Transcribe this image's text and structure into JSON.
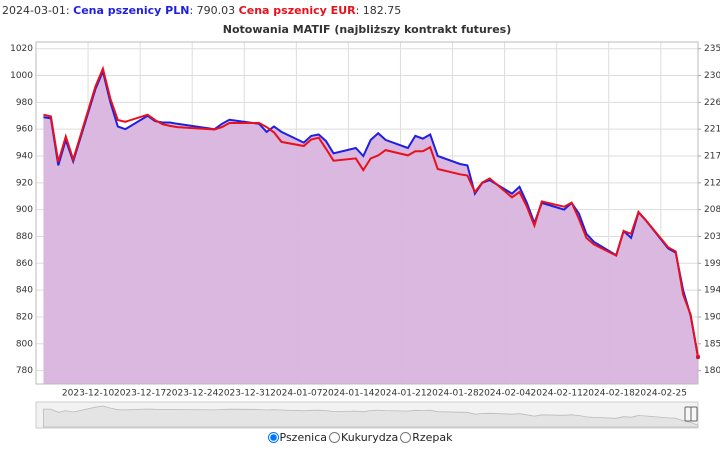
{
  "header": {
    "date": "2024-03-01:",
    "values": [
      ": 790.03",
      ": 182.75"
    ]
  },
  "controls": {
    "options": [
      "Pszenica",
      "Kukurydza",
      "Rzepak"
    ],
    "selected": 0
  },
  "chart_data": {
    "type": "line",
    "title": "Notowania MATIF (najbliższy kontrakt futures)",
    "x": [
      "2023-12-04",
      "2023-12-05",
      "2023-12-06",
      "2023-12-07",
      "2023-12-08",
      "2023-12-11",
      "2023-12-12",
      "2023-12-13",
      "2023-12-14",
      "2023-12-15",
      "2023-12-18",
      "2023-12-19",
      "2023-12-20",
      "2023-12-21",
      "2023-12-22",
      "2023-12-27",
      "2023-12-28",
      "2023-12-29",
      "2024-01-02",
      "2024-01-03",
      "2024-01-04",
      "2024-01-05",
      "2024-01-08",
      "2024-01-09",
      "2024-01-10",
      "2024-01-11",
      "2024-01-12",
      "2024-01-15",
      "2024-01-16",
      "2024-01-17",
      "2024-01-18",
      "2024-01-19",
      "2024-01-22",
      "2024-01-23",
      "2024-01-24",
      "2024-01-25",
      "2024-01-26",
      "2024-01-29",
      "2024-01-30",
      "2024-01-31",
      "2024-02-01",
      "2024-02-02",
      "2024-02-05",
      "2024-02-06",
      "2024-02-07",
      "2024-02-08",
      "2024-02-09",
      "2024-02-12",
      "2024-02-13",
      "2024-02-14",
      "2024-02-15",
      "2024-02-16",
      "2024-02-19",
      "2024-02-20",
      "2024-02-21",
      "2024-02-22",
      "2024-02-23",
      "2024-02-26",
      "2024-02-27",
      "2024-02-28",
      "2024-02-29",
      "2024-03-01"
    ],
    "series": [
      {
        "name": "Cena pszenicy PLN",
        "color": "#1f1fe0",
        "fill": "#d8b4de",
        "axis": "y",
        "values": [
          969,
          968,
          933,
          952,
          936,
          990,
          1003,
          980,
          962,
          960,
          970,
          966,
          965,
          965,
          964,
          960,
          964,
          967,
          964,
          958,
          962,
          958,
          950,
          955,
          956,
          951,
          942,
          946,
          940,
          952,
          957,
          952,
          946,
          955,
          953,
          956,
          940,
          934,
          933,
          912,
          920,
          922,
          912,
          917,
          905,
          890,
          905,
          900,
          905,
          897,
          882,
          876,
          866,
          884,
          879,
          898,
          892,
          871,
          868,
          840,
          821,
          790.03
        ]
      },
      {
        "name": "Cena pszenicy EUR",
        "color": "#e8101c",
        "axis": "y2",
        "values": [
          223.8,
          223.5,
          215.8,
          220.1,
          216.2,
          228.6,
          231.6,
          226.5,
          222.9,
          222.6,
          223.8,
          222.9,
          222.2,
          221.9,
          221.7,
          221.3,
          221.7,
          222.4,
          222.4,
          221.7,
          220.8,
          219.2,
          218.5,
          219.6,
          219.9,
          218.0,
          216.0,
          216.4,
          214.4,
          216.4,
          216.9,
          217.8,
          216.9,
          217.6,
          217.6,
          218.3,
          214.6,
          213.7,
          213.5,
          210.7,
          212.3,
          213.0,
          209.8,
          210.7,
          208.2,
          205.0,
          209.1,
          208.2,
          208.9,
          206.1,
          202.9,
          201.8,
          199.9,
          204.1,
          203.6,
          207.3,
          205.9,
          201.3,
          200.6,
          193.3,
          189.9,
          182.75
        ]
      }
    ],
    "xlim": [
      "2023-12-03",
      "2024-03-01"
    ],
    "xticks": [
      "2023-12-10",
      "2023-12-17",
      "2023-12-24",
      "2023-12-31",
      "2024-01-07",
      "2024-01-14",
      "2024-01-21",
      "2024-01-28",
      "2024-02-04",
      "2024-02-11",
      "2024-02-18",
      "2024-02-25"
    ],
    "ylim": [
      770,
      1025
    ],
    "yticks": [
      780,
      800,
      820,
      840,
      860,
      880,
      900,
      920,
      940,
      960,
      980,
      1000,
      1020
    ],
    "y2lim": [
      178.125,
      236.1375
    ],
    "y2ticks": [
      {
        "value": 180.4,
        "label": "180"
      },
      {
        "value": 184.95,
        "label": "185"
      },
      {
        "value": 189.5,
        "label": "190"
      },
      {
        "value": 194.05,
        "label": "194"
      },
      {
        "value": 198.6,
        "label": "199"
      },
      {
        "value": 203.15,
        "label": "203"
      },
      {
        "value": 207.7,
        "label": "208"
      },
      {
        "value": 212.25,
        "label": "212"
      },
      {
        "value": 216.8,
        "label": "217"
      },
      {
        "value": 221.35,
        "label": "221"
      },
      {
        "value": 225.9,
        "label": "226"
      },
      {
        "value": 230.45,
        "label": "230"
      },
      {
        "value": 235,
        "label": "235"
      }
    ],
    "grid": true
  }
}
